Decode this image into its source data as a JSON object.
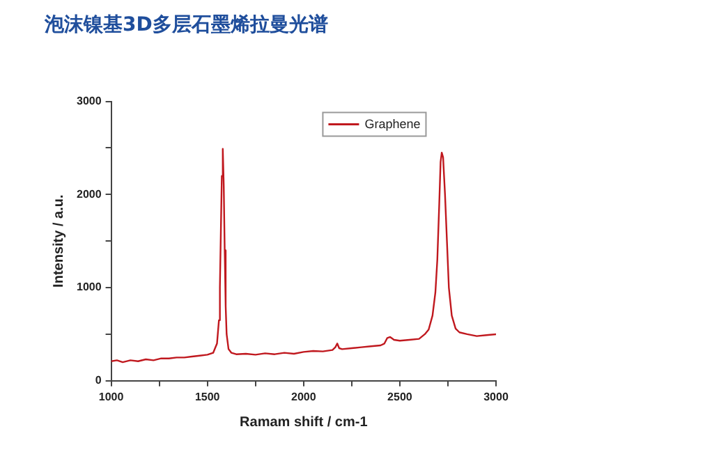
{
  "chart_data": {
    "type": "line",
    "title": "泡沫镍基3D多层石墨烯拉曼光谱",
    "xlabel": "Ramam shift / cm-1",
    "ylabel": "Intensity / a.u.",
    "x": [
      1000,
      1030,
      1060,
      1100,
      1140,
      1180,
      1220,
      1260,
      1300,
      1340,
      1380,
      1420,
      1460,
      1500,
      1530,
      1550,
      1560,
      1565,
      1570,
      1575,
      1580,
      1585,
      1590,
      1595,
      1600,
      1610,
      1625,
      1650,
      1700,
      1750,
      1800,
      1850,
      1900,
      1950,
      2000,
      2050,
      2100,
      2150,
      2165,
      2175,
      2185,
      2200,
      2250,
      2300,
      2350,
      2400,
      2420,
      2435,
      2450,
      2470,
      2500,
      2550,
      2600,
      2630,
      2650,
      2670,
      2685,
      2695,
      2705,
      2712,
      2718,
      2725,
      2735,
      2745,
      2755,
      2770,
      2790,
      2810,
      2850,
      2900,
      2950,
      3000
    ],
    "series": [
      {
        "name": "Graphene",
        "color": "#c0181e",
        "values": [
          210,
          220,
          200,
          220,
          210,
          230,
          220,
          240,
          240,
          250,
          250,
          260,
          270,
          280,
          300,
          400,
          650,
          1000,
          1600,
          2200,
          2490,
          2100,
          1400,
          800,
          500,
          340,
          300,
          285,
          290,
          280,
          295,
          285,
          300,
          290,
          310,
          320,
          315,
          330,
          360,
          400,
          350,
          340,
          350,
          360,
          370,
          380,
          400,
          460,
          470,
          440,
          430,
          440,
          450,
          500,
          550,
          700,
          950,
          1300,
          1900,
          2350,
          2450,
          2400,
          2000,
          1500,
          1000,
          700,
          560,
          520,
          500,
          480,
          490,
          500
        ]
      }
    ],
    "xlim": [
      1000,
      3000
    ],
    "xticks": [
      1000,
      {
        "value": 1250,
        "label": null
      },
      1500,
      {
        "value": 1750,
        "label": null
      },
      2000,
      {
        "value": 2250,
        "label": null
      },
      2500,
      {
        "value": 2750,
        "label": null
      },
      3000
    ],
    "ylim": [
      0,
      3000
    ],
    "yticks": [
      0,
      {
        "value": 500,
        "label": null
      },
      1000,
      {
        "value": 1500,
        "label": null
      },
      2000,
      {
        "value": 2500,
        "label": null
      },
      3000
    ],
    "grid": false,
    "legend": "top right",
    "marker": "none",
    "line_style": "solid"
  }
}
